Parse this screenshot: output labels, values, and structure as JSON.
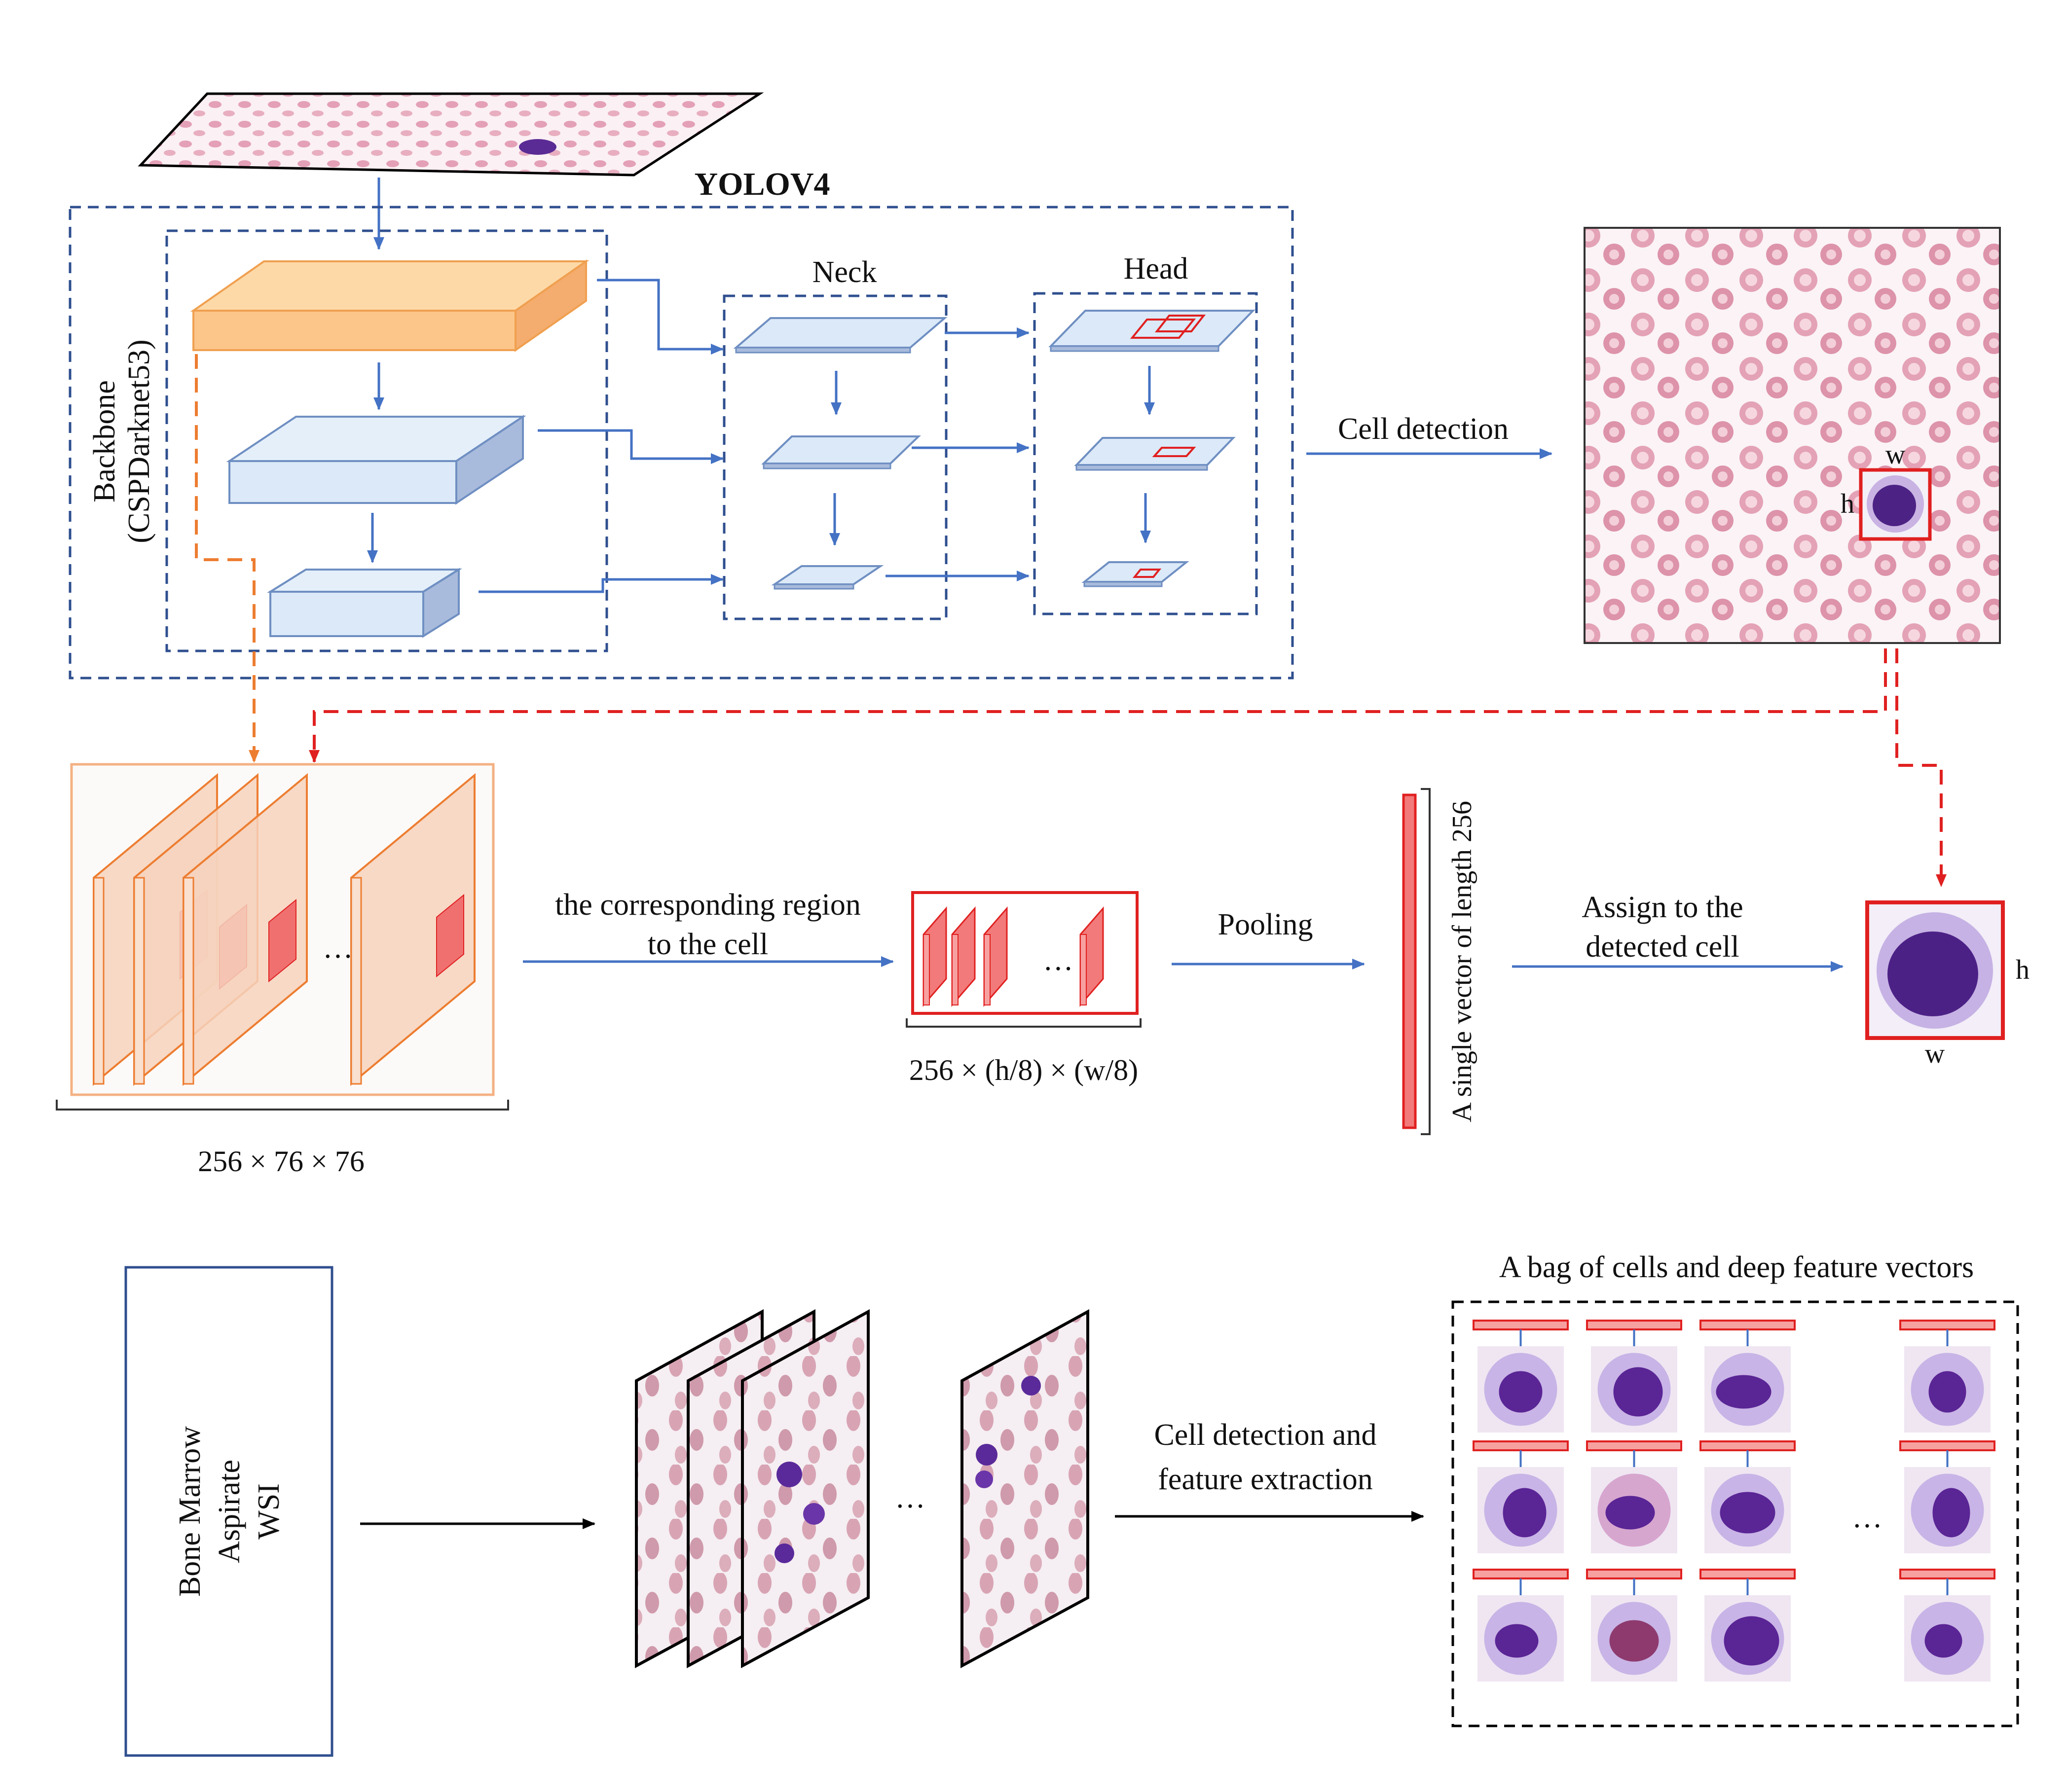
{
  "yolo": {
    "title": "YOLOV4",
    "backbone_label_1": "Backbone",
    "backbone_label_2": "(CSPDarknet53)",
    "neck_label": "Neck",
    "head_label": "Head"
  },
  "detection": {
    "arrow_label": "Cell detection",
    "w_label": "w",
    "h_label": "h"
  },
  "features": {
    "map_dims": "256 × 76 × 76",
    "region_label_1": "the corresponding region",
    "region_label_2": "to the cell",
    "region_dims": "256 × (h/8) × (w/8)",
    "pooling_label": "Pooling",
    "vector_label": "A single vector of length 256",
    "assign_label_1": "Assign to the",
    "assign_label_2": "detected cell",
    "ellipsis": "···",
    "cell_w_label": "w",
    "cell_h_label": "h"
  },
  "pipeline": {
    "wsi_label_1": "Bone Marrow",
    "wsi_label_2": "Aspirate",
    "wsi_label_3": "WSI",
    "extract_label_1": "Cell detection and",
    "extract_label_2": "feature extraction",
    "bag_title": "A bag of cells and deep feature vectors",
    "ellipsis": "···"
  },
  "colors": {
    "blue": "#4472c4",
    "dark_blue": "#2f4f8f",
    "orange": "#ed7d31",
    "red": "#e02020",
    "light_blue": "#dbe9f8",
    "light_orange": "#fdd9a8",
    "rbc": "#e8a0b4",
    "nucleus": "#5a2a9a"
  }
}
